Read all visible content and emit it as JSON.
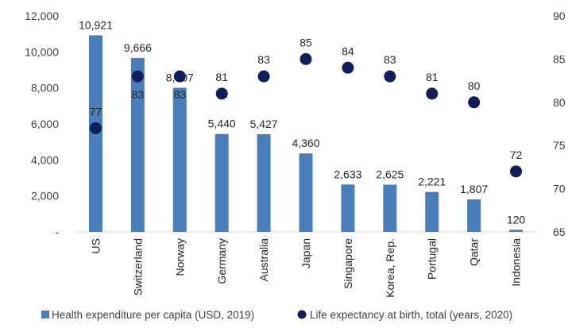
{
  "chart_data": {
    "type": "bar",
    "categories": [
      "US",
      "Switzerland",
      "Norway",
      "Germany",
      "Australia",
      "Japan",
      "Singapore",
      "Korea, Rep.",
      "Portugal",
      "Qatar",
      "Indonesia"
    ],
    "series": [
      {
        "name": "Health expenditure per capita (USD, 2019)",
        "type": "bar",
        "axis": "left",
        "color": "#4a7ebb",
        "values": [
          10921,
          9666,
          8007,
          5440,
          5427,
          4360,
          2633,
          2625,
          2221,
          1807,
          120
        ],
        "labels": [
          "10,921",
          "9,666",
          "8,007",
          "5,440",
          "5,427",
          "4,360",
          "2,633",
          "2,625",
          "2,221",
          "1,807",
          "120"
        ]
      },
      {
        "name": "Life expectancy at birth, total (years, 2020)",
        "type": "scatter",
        "axis": "right",
        "color": "#0f1f5c",
        "values": [
          77,
          83,
          83,
          81,
          83,
          85,
          84,
          83,
          81,
          80,
          72
        ],
        "labels": [
          "77",
          "83",
          "83",
          "81",
          "83",
          "85",
          "84",
          "83",
          "81",
          "80",
          "72"
        ]
      }
    ],
    "y_left": {
      "range": [
        0,
        12000
      ],
      "ticks": [
        0,
        2000,
        4000,
        6000,
        8000,
        10000,
        12000
      ],
      "tick_labels": [
        "-",
        "2,000",
        "4,000",
        "6,000",
        "8,000",
        "10,000",
        "12,000"
      ]
    },
    "y_right": {
      "range": [
        65,
        90
      ],
      "ticks": [
        65,
        70,
        75,
        80,
        85,
        90
      ],
      "tick_labels": [
        "65",
        "70",
        "75",
        "80",
        "85",
        "90"
      ]
    },
    "grid": false,
    "legend_position": "bottom"
  }
}
